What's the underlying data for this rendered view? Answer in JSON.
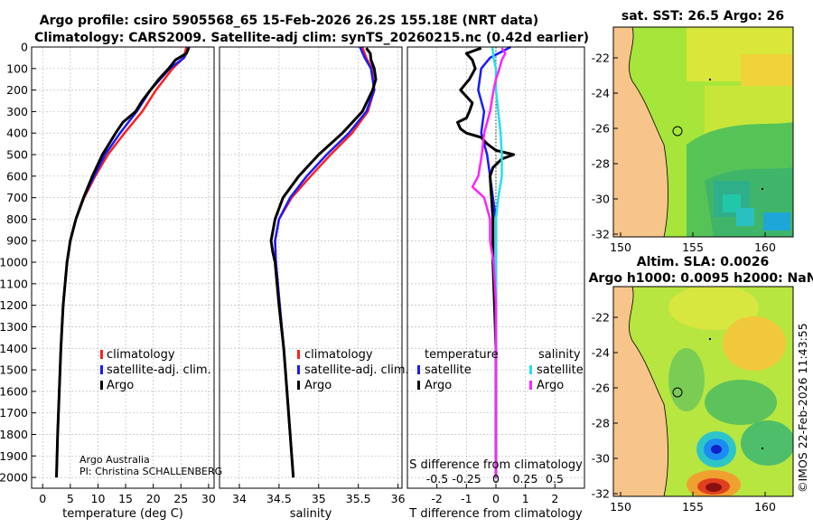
{
  "header": {
    "title_line1": "Argo profile: csiro 5905568_65 15-Feb-2026 26.2S 155.18E (NRT data)",
    "title_line2": "Climatology: CARS2009. Satellite-adj clim: synTS_20260215.nc (0.42d earlier)"
  },
  "colors": {
    "climatology": "#ff2020",
    "satellite": "#1a1aff",
    "argo": "#000000",
    "sal_satellite": "#22e0ea",
    "sal_argo": "#ff22ff"
  },
  "chart_data": [
    {
      "id": "temperature",
      "type": "line",
      "xlabel": "temperature (deg C)",
      "ylabel": "",
      "xlim": [
        -2,
        31
      ],
      "ylim": [
        2050,
        0
      ],
      "xticks": [
        0,
        5,
        10,
        15,
        20,
        25,
        30
      ],
      "xtick_labels": [
        "0",
        "5",
        "10",
        "15",
        "20",
        "25",
        "30"
      ],
      "yticks": [
        0,
        100,
        200,
        300,
        400,
        500,
        600,
        700,
        800,
        900,
        1000,
        1100,
        1200,
        1300,
        1400,
        1500,
        1600,
        1700,
        1800,
        1900,
        2000
      ],
      "legend": [
        "climatology",
        "satellite-adj. clim.",
        "Argo"
      ],
      "annotation": [
        "Argo Australia",
        "PI: Christina SCHALLENBERG"
      ],
      "series": [
        {
          "name": "climatology",
          "color": "#ff2020",
          "depth": [
            0,
            50,
            100,
            200,
            300,
            400,
            500,
            600,
            700,
            800,
            900,
            1000,
            1200,
            1400,
            1600,
            1800,
            2000
          ],
          "values": [
            26.0,
            25.5,
            23.5,
            20.5,
            18.0,
            14.8,
            11.8,
            9.5,
            7.5,
            6.0,
            5.0,
            4.4,
            3.7,
            3.3,
            3.0,
            2.7,
            2.5
          ]
        },
        {
          "name": "satellite-adj. clim.",
          "color": "#1a1aff",
          "depth": [
            0,
            50,
            100,
            200,
            300,
            400,
            500,
            600,
            700,
            800,
            900,
            1000,
            1200,
            1400,
            1600,
            1800,
            2000
          ],
          "values": [
            26.5,
            25.6,
            23.0,
            19.5,
            17.0,
            14.0,
            11.3,
            9.3,
            7.4,
            6.0,
            5.0,
            4.4,
            3.7,
            3.3,
            3.0,
            2.7,
            2.5
          ]
        },
        {
          "name": "Argo",
          "color": "#000000",
          "depth": [
            5,
            30,
            60,
            100,
            150,
            200,
            250,
            300,
            350,
            400,
            450,
            500,
            600,
            700,
            800,
            900,
            1000,
            1200,
            1400,
            1600,
            1800,
            2000
          ],
          "values": [
            26.4,
            26.0,
            24.0,
            22.8,
            21.0,
            19.5,
            18.0,
            16.8,
            14.5,
            13.2,
            12.0,
            10.8,
            9.0,
            7.4,
            6.0,
            5.0,
            4.4,
            3.7,
            3.3,
            3.0,
            2.7,
            2.5
          ]
        }
      ]
    },
    {
      "id": "salinity",
      "type": "line",
      "xlabel": "salinity",
      "xlim": [
        33.75,
        36.05
      ],
      "ylim": [
        2050,
        0
      ],
      "xticks": [
        34,
        34.5,
        35,
        35.5,
        36
      ],
      "xtick_labels": [
        "34",
        "34.5",
        "35",
        "35.5",
        "36"
      ],
      "legend": [
        "climatology",
        "satellite-adj. clim.",
        "Argo"
      ],
      "series": [
        {
          "name": "climatology",
          "color": "#ff2020",
          "depth": [
            0,
            50,
            100,
            200,
            300,
            400,
            500,
            600,
            700,
            800,
            900,
            1000,
            1200,
            1400,
            1600,
            1800,
            2000
          ],
          "values": [
            35.55,
            35.6,
            35.67,
            35.7,
            35.62,
            35.42,
            35.15,
            34.9,
            34.66,
            34.5,
            34.45,
            34.46,
            34.51,
            34.56,
            34.6,
            34.64,
            34.68
          ]
        },
        {
          "name": "satellite-adj. clim.",
          "color": "#1a1aff",
          "depth": [
            0,
            50,
            100,
            200,
            300,
            400,
            500,
            600,
            700,
            800,
            900,
            1000,
            1200,
            1400,
            1600,
            1800,
            2000
          ],
          "values": [
            35.52,
            35.58,
            35.66,
            35.7,
            35.6,
            35.38,
            35.1,
            34.85,
            34.64,
            34.5,
            34.45,
            34.46,
            34.51,
            34.56,
            34.6,
            34.64,
            34.68
          ]
        },
        {
          "name": "Argo",
          "color": "#000000",
          "depth": [
            5,
            30,
            60,
            100,
            150,
            200,
            300,
            400,
            500,
            600,
            700,
            800,
            900,
            950,
            1000,
            1200,
            1400,
            1600,
            1800,
            2000
          ],
          "values": [
            35.6,
            35.65,
            35.66,
            35.7,
            35.72,
            35.68,
            35.55,
            35.3,
            35.0,
            34.75,
            34.55,
            34.45,
            34.4,
            34.42,
            34.45,
            34.5,
            34.56,
            34.6,
            34.64,
            34.68
          ]
        }
      ]
    },
    {
      "id": "difference",
      "type": "line",
      "xlabel": "T difference from climatology",
      "top_axis_label": "S difference from climatology",
      "xlim": [
        -3,
        3
      ],
      "ylim": [
        2050,
        0
      ],
      "xticks": [
        -2,
        -1,
        0,
        1,
        2
      ],
      "xtick_labels": [
        "-2",
        "-1",
        "0",
        "1",
        "2"
      ],
      "sticks": [
        -0.5,
        -0.25,
        0,
        0.25,
        0.5
      ],
      "stick_labels": [
        "-0.5",
        "-0.25",
        "0",
        "0.25",
        "0.5"
      ],
      "legend_left_title": "temperature",
      "legend_right_title": "salinity",
      "legend_left": [
        "satellite",
        "Argo"
      ],
      "legend_right": [
        "satellite",
        "Argo"
      ],
      "series": [
        {
          "name": "T satellite",
          "color": "#1a1aff",
          "depth": [
            0,
            50,
            100,
            200,
            300,
            400,
            500,
            600,
            700,
            800,
            900,
            1000,
            1200,
            1400,
            1600,
            1800,
            2000
          ],
          "values": [
            0.5,
            -0.2,
            -0.5,
            -0.6,
            -0.4,
            -0.5,
            -0.3,
            -0.2,
            -0.1,
            0.0,
            0.0,
            0.0,
            0.0,
            0.0,
            0.0,
            0.0,
            0.0
          ]
        },
        {
          "name": "T Argo",
          "color": "#000000",
          "depth": [
            5,
            30,
            60,
            100,
            150,
            200,
            260,
            300,
            330,
            350,
            380,
            400,
            420,
            450,
            480,
            500,
            520,
            560,
            600,
            700,
            800,
            900,
            1000,
            1200,
            1400,
            1600,
            1800,
            2000
          ],
          "values": [
            -0.5,
            -1.0,
            -0.8,
            -0.7,
            -0.9,
            -1.2,
            -0.8,
            -0.9,
            -1.0,
            -1.3,
            -1.2,
            -1.0,
            -0.5,
            -0.3,
            0.0,
            0.6,
            0.2,
            -0.1,
            -0.2,
            -0.15,
            -0.1,
            -0.1,
            -0.1,
            -0.05,
            0.0,
            0.0,
            0.0,
            0.0
          ]
        },
        {
          "name": "S satellite",
          "color": "#22e0ea",
          "depth": [
            0,
            50,
            100,
            200,
            300,
            400,
            500,
            600,
            700,
            800,
            900,
            1000,
            1200,
            1400,
            1600,
            1800,
            2000
          ],
          "values": [
            -0.03,
            -0.02,
            0.0,
            0.0,
            0.02,
            0.04,
            0.05,
            0.05,
            0.02,
            0.0,
            0.0,
            0.0,
            0.0,
            0.0,
            0.0,
            0.0,
            0.0
          ]
        },
        {
          "name": "S Argo",
          "color": "#ff22ff",
          "depth": [
            5,
            30,
            60,
            100,
            150,
            200,
            300,
            400,
            500,
            600,
            650,
            700,
            800,
            900,
            1000,
            1200,
            1400,
            1600,
            1800,
            2000
          ],
          "values": [
            0.05,
            0.08,
            0.05,
            0.03,
            0.0,
            -0.02,
            -0.05,
            -0.1,
            -0.12,
            -0.15,
            -0.2,
            -0.1,
            -0.05,
            -0.05,
            -0.02,
            0.0,
            0.0,
            0.0,
            0.0,
            0.0
          ]
        }
      ]
    }
  ],
  "maps": {
    "sst": {
      "title": "sat. SST: 26.5 Argo: 26",
      "yticks": [
        "-22",
        "-24",
        "-26",
        "-28",
        "-30",
        "-32"
      ],
      "xticks": [
        "150",
        "155",
        "160"
      ]
    },
    "sla": {
      "title_line1": "Altim. SLA: 0.0026",
      "title_line2": "Argo h1000: 0.0095 h2000: NaN",
      "yticks": [
        "-22",
        "-24",
        "-26",
        "-28",
        "-30",
        "-32"
      ],
      "xticks": [
        "150",
        "155",
        "160"
      ]
    }
  },
  "footer": {
    "stamp": "©IMOS 22-Feb-2026 11:43:55"
  }
}
